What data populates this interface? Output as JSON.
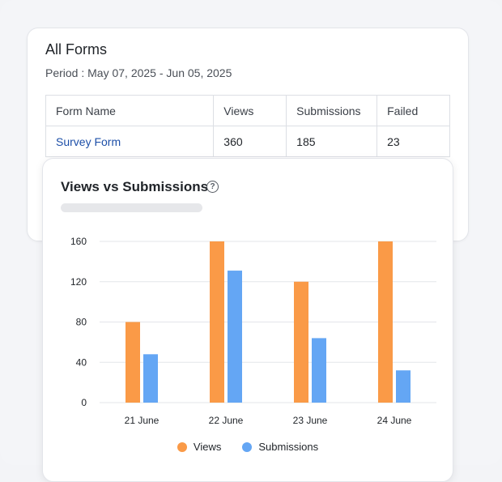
{
  "forms": {
    "title": "All Forms",
    "period": "Period : May 07, 2025 - Jun 05, 2025",
    "columns": [
      "Form Name",
      "Views",
      "Submissions",
      "Failed"
    ],
    "rows": [
      [
        "Survey Form",
        "360",
        "185",
        "23"
      ]
    ]
  },
  "colors": {
    "views": "#fa9a47",
    "submissions": "#64a6f4",
    "grid": "#e3e5ea",
    "link": "#1d4fa8"
  },
  "chart_data": {
    "type": "bar",
    "title": "Views vs Submissions",
    "categories": [
      "21 June",
      "22 June",
      "23 June",
      "24 June"
    ],
    "series": [
      {
        "name": "Views",
        "values": [
          80,
          160,
          120,
          160
        ]
      },
      {
        "name": "Submissions",
        "values": [
          48,
          131,
          64,
          32
        ]
      }
    ],
    "yticks": [
      0,
      40,
      80,
      120,
      160
    ],
    "ylim": [
      0,
      160
    ],
    "legend": "bottom-center"
  }
}
